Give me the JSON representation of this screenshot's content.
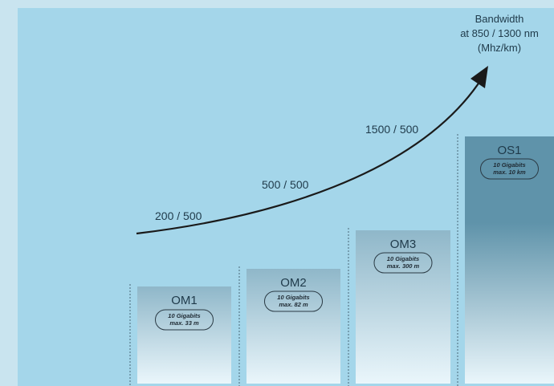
{
  "chart_data": {
    "type": "bar",
    "categories": [
      "OM1",
      "OM2",
      "OM3",
      "OS1"
    ],
    "bar_notes": [
      [
        "10 Gigabits",
        "max. 33 m"
      ],
      [
        "10 Gigabits",
        "max. 82 m"
      ],
      [
        "10 Gigabits",
        "max. 300 m"
      ],
      [
        "10 Gigabits",
        "max. 10 km"
      ]
    ],
    "bandwidth_labels": [
      "200 / 500",
      "500 / 500",
      "1500 / 500"
    ],
    "axis_title": [
      "Bandwidth",
      "at 850 / 1300 nm",
      "(Mhz/km)"
    ],
    "colors": {
      "page": "#c9e4ef",
      "panel": "#a4d6ea",
      "bar_top_om": "#8fb7c9",
      "bar_top_os": "#5f93aa",
      "bar_bottom": "#eaf6fb",
      "curve": "#1a1a1a"
    }
  }
}
